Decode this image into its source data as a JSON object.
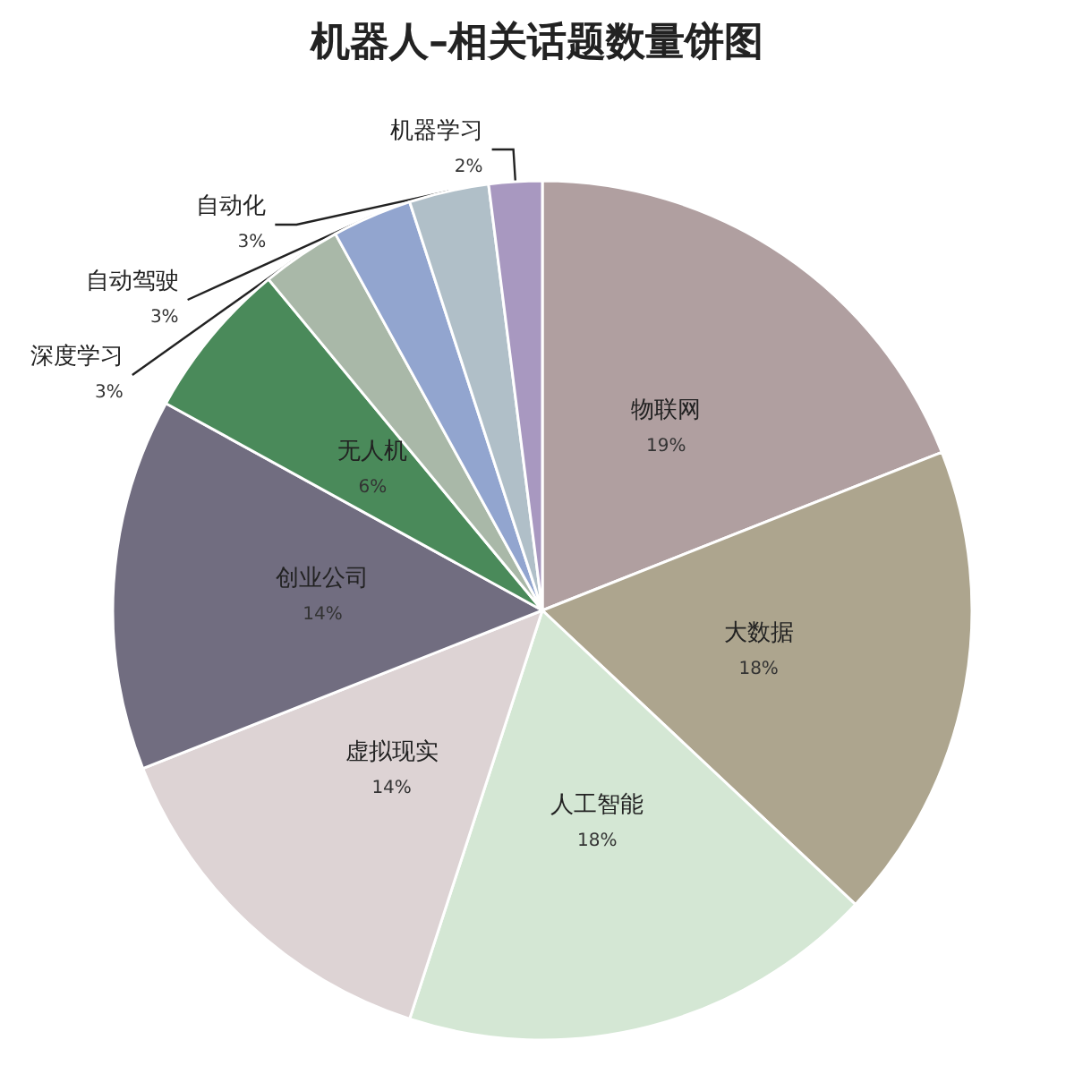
{
  "chart_data": {
    "type": "pie",
    "title": "机器人–相关话题数量饼图",
    "categories": [
      "物联网",
      "大数据",
      "人工智能",
      "虚拟现实",
      "创业公司",
      "无人机",
      "深度学习",
      "自动驾驶",
      "自动化",
      "机器学习"
    ],
    "values": [
      19,
      18,
      18,
      14,
      14,
      6,
      3,
      3,
      3,
      2
    ],
    "value_labels": [
      "19%",
      "18%",
      "18%",
      "14%",
      "14%",
      "6%",
      "3%",
      "3%",
      "3%",
      "2%"
    ],
    "colors": [
      "#b09fa0",
      "#ada58e",
      "#d4e7d4",
      "#ddd3d4",
      "#716d80",
      "#4a8a5a",
      "#a9b8a8",
      "#92a5cf",
      "#b0bfc8",
      "#a898c0"
    ]
  }
}
